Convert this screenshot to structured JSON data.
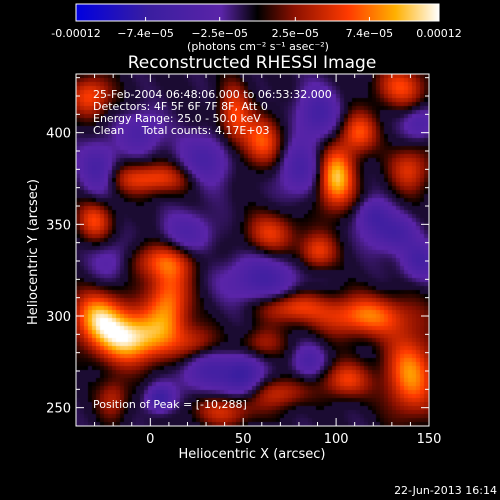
{
  "chart_data": {
    "type": "heatmap",
    "title": "Reconstructed RHESSI Image",
    "xlabel": "Heliocentric X (arcsec)",
    "ylabel": "Heliocentric Y (arcsec)",
    "xlim": [
      -40,
      150
    ],
    "ylim": [
      240,
      432
    ],
    "xticks": [
      0,
      50,
      100,
      150
    ],
    "xtick_labels": [
      "0",
      "50",
      "100",
      "150"
    ],
    "yticks": [
      250,
      300,
      350,
      400
    ],
    "ytick_labels": [
      "250",
      "300",
      "350",
      "400"
    ],
    "colorbar": {
      "range": [
        -0.00012,
        0.00012
      ],
      "ticks": [
        -0.00012,
        -7.4e-05,
        -2.5e-05,
        2.5e-05,
        7.4e-05,
        0.00012
      ],
      "tick_labels": [
        "-0.00012",
        "−7.4e−05",
        "−2.5e−05",
        "2.5e−05",
        "7.4e−05",
        "0.00012"
      ],
      "label": "(photons cm⁻² s⁻¹ asec⁻²)",
      "stops": [
        {
          "v": 0.0,
          "color": "#0000e0"
        },
        {
          "v": 0.2,
          "color": "#3a1ea0"
        },
        {
          "v": 0.4,
          "color": "#5a24a8"
        },
        {
          "v": 0.5,
          "color": "#000000"
        },
        {
          "v": 0.6,
          "color": "#8a1000"
        },
        {
          "v": 0.75,
          "color": "#ff3a00"
        },
        {
          "v": 0.88,
          "color": "#ffb000"
        },
        {
          "v": 1.0,
          "color": "#ffffff"
        }
      ]
    },
    "annotations": [
      "25-Feb-2004 06:48:06.000 to 06:53:32.000",
      "Detectors: 4F 5F 6F 7F 8F, Att 0",
      "Energy Range: 25.0 - 50.0 keV",
      "Clean     Total counts: 4.17E+03"
    ],
    "peak_text": "Position of Peak = [-10,288]",
    "peak": {
      "x": -10,
      "y": 288
    },
    "sources": [
      {
        "x": -10,
        "y": 288,
        "sx": 14,
        "sy": 10,
        "a": 1.0
      },
      {
        "x": -28,
        "y": 300,
        "sx": 10,
        "sy": 10,
        "a": 0.75
      },
      {
        "x": 10,
        "y": 308,
        "sx": 8,
        "sy": 14,
        "a": 0.7
      },
      {
        "x": 5,
        "y": 330,
        "sx": 14,
        "sy": 7,
        "a": 0.5
      },
      {
        "x": -30,
        "y": 352,
        "sx": 7,
        "sy": 8,
        "a": 0.55
      },
      {
        "x": 0,
        "y": 375,
        "sx": 16,
        "sy": 6,
        "a": 0.6
      },
      {
        "x": -32,
        "y": 420,
        "sx": 8,
        "sy": 8,
        "a": 0.6
      },
      {
        "x": 45,
        "y": 410,
        "sx": 6,
        "sy": 12,
        "a": 0.55
      },
      {
        "x": 60,
        "y": 395,
        "sx": 8,
        "sy": 10,
        "a": 0.6
      },
      {
        "x": 65,
        "y": 345,
        "sx": 10,
        "sy": 8,
        "a": 0.5
      },
      {
        "x": 100,
        "y": 375,
        "sx": 7,
        "sy": 12,
        "a": 0.9
      },
      {
        "x": 112,
        "y": 400,
        "sx": 7,
        "sy": 8,
        "a": 0.6
      },
      {
        "x": 135,
        "y": 425,
        "sx": 10,
        "sy": 8,
        "a": 0.55
      },
      {
        "x": 140,
        "y": 380,
        "sx": 8,
        "sy": 9,
        "a": 0.5
      },
      {
        "x": 90,
        "y": 335,
        "sx": 7,
        "sy": 7,
        "a": 0.55
      },
      {
        "x": 75,
        "y": 305,
        "sx": 12,
        "sy": 6,
        "a": 0.55
      },
      {
        "x": 115,
        "y": 300,
        "sx": 18,
        "sy": 8,
        "a": 0.7
      },
      {
        "x": 140,
        "y": 268,
        "sx": 10,
        "sy": 16,
        "a": 0.75
      },
      {
        "x": 105,
        "y": 265,
        "sx": 9,
        "sy": 7,
        "a": 0.55
      },
      {
        "x": 70,
        "y": 258,
        "sx": 10,
        "sy": 6,
        "a": 0.45
      },
      {
        "x": 40,
        "y": 248,
        "sx": 12,
        "sy": 6,
        "a": 0.45
      },
      {
        "x": 25,
        "y": 285,
        "sx": 8,
        "sy": 7,
        "a": 0.4
      },
      {
        "x": 60,
        "y": 285,
        "sx": 8,
        "sy": 6,
        "a": 0.35
      },
      {
        "x": -20,
        "y": 255,
        "sx": 6,
        "sy": 8,
        "a": 0.4
      },
      {
        "x": 5,
        "y": 255,
        "sx": 5,
        "sy": 5,
        "a": -0.7
      },
      {
        "x": 30,
        "y": 270,
        "sx": 10,
        "sy": 8,
        "a": -0.5
      },
      {
        "x": 50,
        "y": 268,
        "sx": 7,
        "sy": 7,
        "a": -0.7
      },
      {
        "x": 85,
        "y": 275,
        "sx": 6,
        "sy": 6,
        "a": -0.45
      },
      {
        "x": 60,
        "y": 320,
        "sx": 14,
        "sy": 9,
        "a": -0.55
      },
      {
        "x": 20,
        "y": 345,
        "sx": 10,
        "sy": 8,
        "a": -0.4
      },
      {
        "x": -20,
        "y": 330,
        "sx": 8,
        "sy": 8,
        "a": -0.35
      },
      {
        "x": -28,
        "y": 380,
        "sx": 7,
        "sy": 10,
        "a": -0.55
      },
      {
        "x": -5,
        "y": 400,
        "sx": 8,
        "sy": 8,
        "a": -0.45
      },
      {
        "x": 30,
        "y": 385,
        "sx": 10,
        "sy": 10,
        "a": -0.5
      },
      {
        "x": 80,
        "y": 380,
        "sx": 8,
        "sy": 10,
        "a": -0.5
      },
      {
        "x": 90,
        "y": 410,
        "sx": 8,
        "sy": 10,
        "a": -0.55
      },
      {
        "x": 130,
        "y": 345,
        "sx": 9,
        "sy": 7,
        "a": -0.55
      },
      {
        "x": 120,
        "y": 355,
        "sx": 6,
        "sy": 6,
        "a": -0.5
      },
      {
        "x": 145,
        "y": 330,
        "sx": 7,
        "sy": 7,
        "a": -0.5
      },
      {
        "x": 145,
        "y": 405,
        "sx": 6,
        "sy": 6,
        "a": -0.45
      }
    ]
  },
  "footer": {
    "date": "22-Jun-2013 16:14"
  }
}
